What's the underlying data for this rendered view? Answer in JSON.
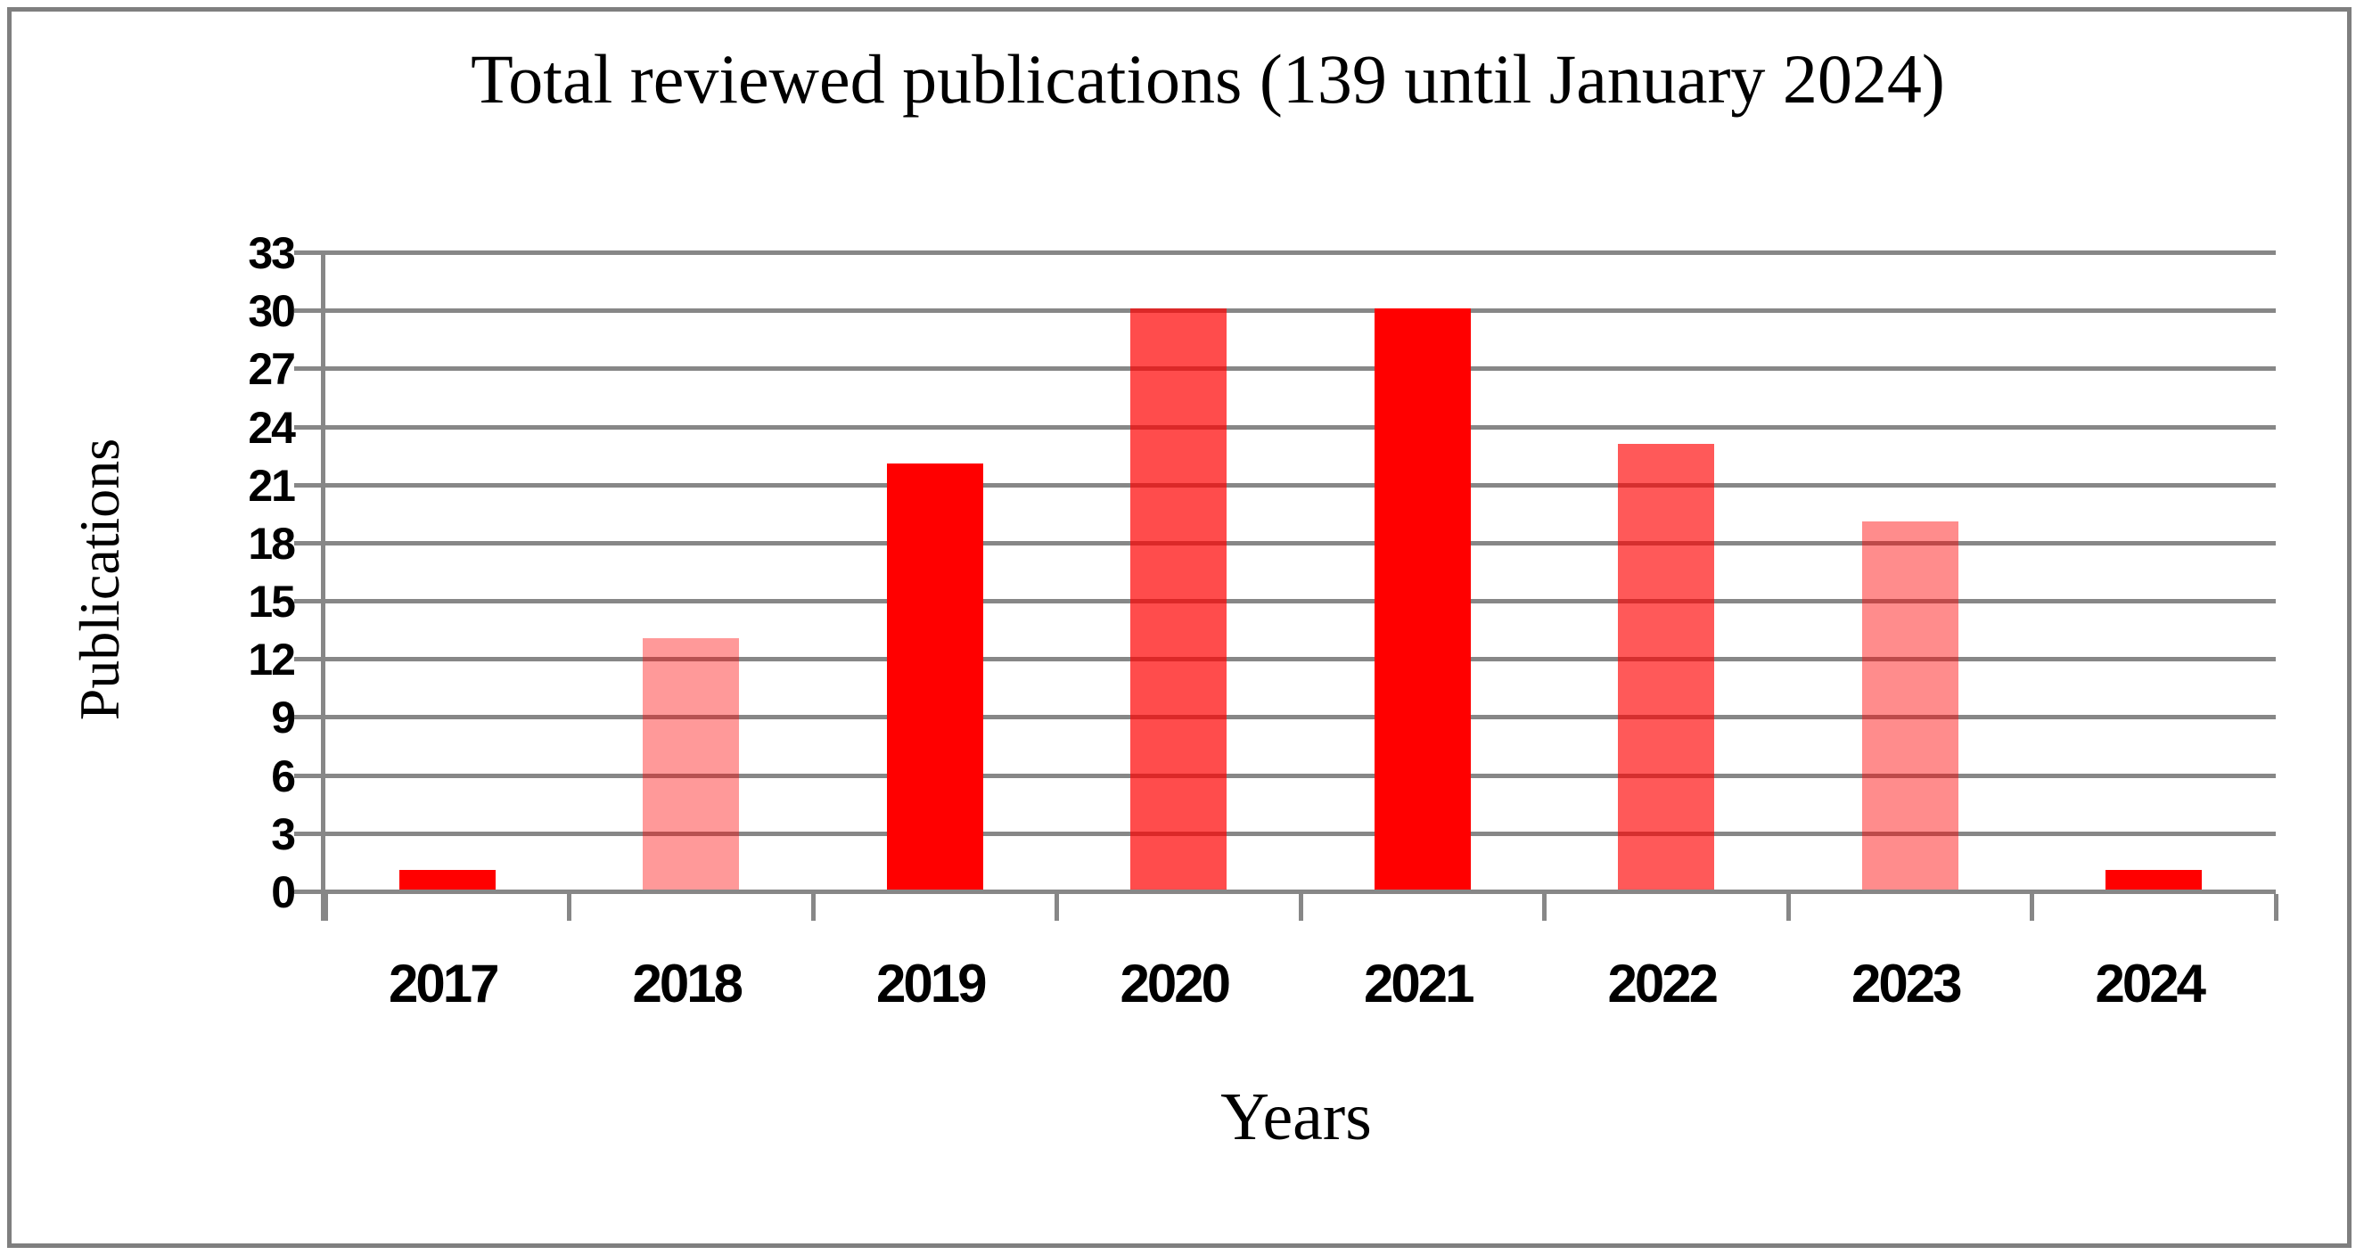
{
  "frame": {
    "border_color": "#7f7f7f"
  },
  "chart_data": {
    "type": "bar",
    "title": "Total reviewed publications (139 until January 2024)",
    "xlabel": "Years",
    "ylabel": "Publications",
    "categories": [
      "2017",
      "2018",
      "2019",
      "2020",
      "2021",
      "2022",
      "2023",
      "2024"
    ],
    "values": [
      1,
      13,
      22,
      30,
      30,
      23,
      19,
      1
    ],
    "total_publications": 139,
    "ylim": [
      0,
      33
    ],
    "yticks": [
      0,
      3,
      6,
      9,
      12,
      15,
      18,
      21,
      24,
      27,
      30,
      33
    ],
    "grid": "horizontal",
    "legend": "none",
    "axis_color": "#878787",
    "bar_color": "#ff0000",
    "bar_opacities": [
      1,
      0.4,
      1,
      0.7,
      1,
      0.65,
      0.45,
      1
    ]
  }
}
